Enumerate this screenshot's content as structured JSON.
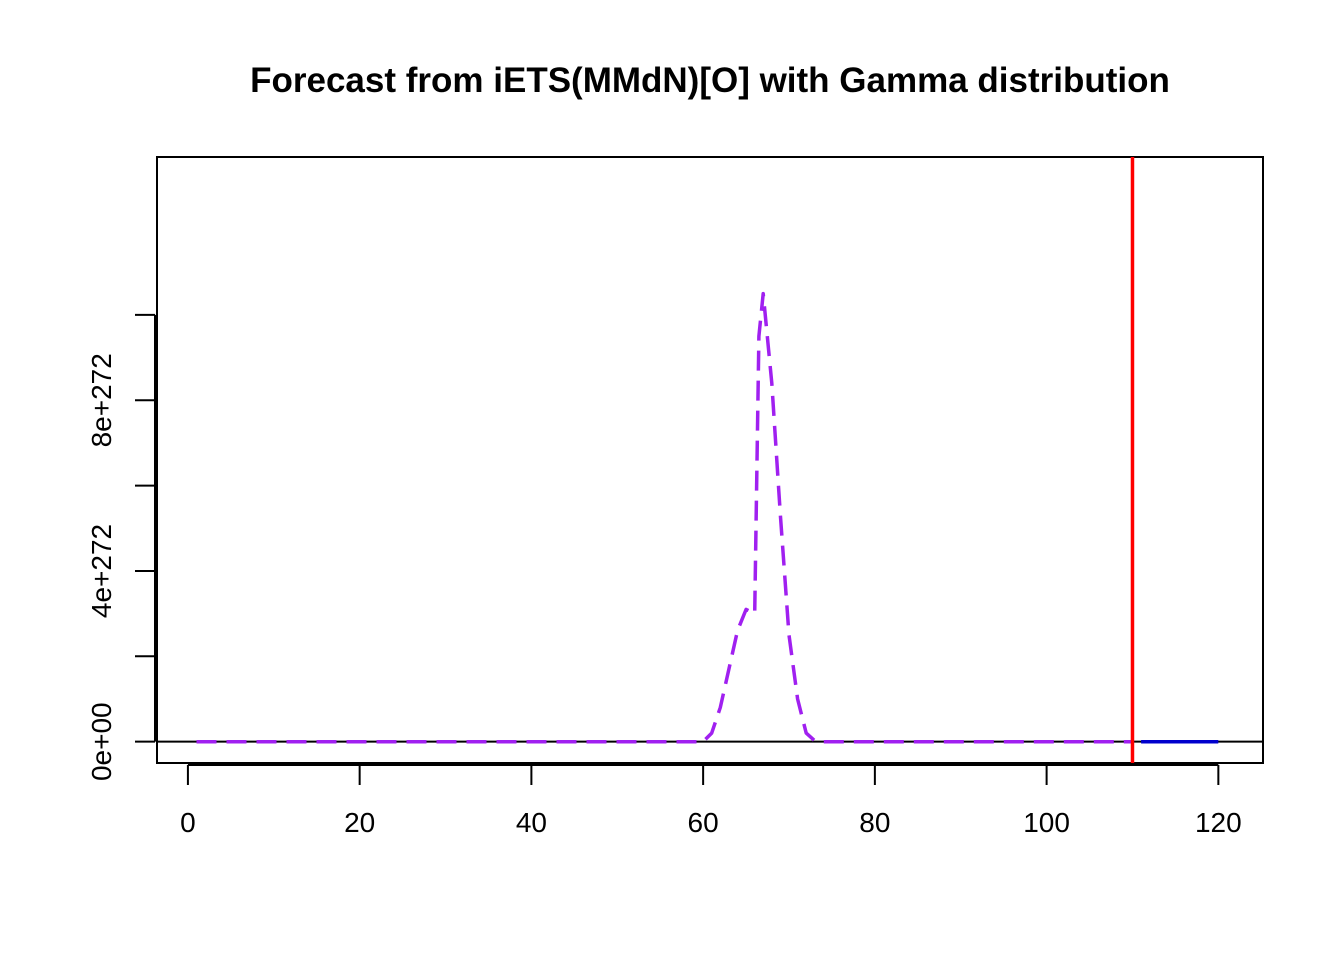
{
  "chart_data": {
    "type": "line",
    "title": "Forecast from iETS(MMdN)[O] with Gamma distribution",
    "xlabel": "",
    "ylabel": "",
    "xlim": [
      -3.6,
      125.2
    ],
    "ylim": [
      -5e+271,
      1.37e+273
    ],
    "x_ticks": [
      0,
      20,
      40,
      60,
      80,
      100,
      120
    ],
    "y_ticks": [
      0,
      2e+272,
      4e+272,
      6e+272,
      8e+272,
      1e+273
    ],
    "y_tick_labels": [
      {
        "value": 0,
        "label": "0e+00"
      },
      {
        "value": 4e+272,
        "label": "4e+272"
      },
      {
        "value": 8e+272,
        "label": "8e+272"
      }
    ],
    "grid": false,
    "legend": "none",
    "zero_line_color": "#000000",
    "holdout_line": {
      "x": 110,
      "color": "#ff0000"
    },
    "series": [
      {
        "style": "dashed",
        "color": "#a020f0",
        "points": [
          [
            1,
            0
          ],
          [
            60,
            0
          ],
          [
            61,
            2e+271
          ],
          [
            62,
            8e+271
          ],
          [
            63,
            1.7e+272
          ],
          [
            64,
            2.6e+272
          ],
          [
            65,
            3.1e+272
          ],
          [
            66,
            3e+272
          ],
          [
            66.5,
            9.5e+272
          ],
          [
            67,
            1.05e+273
          ],
          [
            68,
            8.4e+272
          ],
          [
            69,
            5.3e+272
          ],
          [
            70,
            2.5e+272
          ],
          [
            71,
            1e+272
          ],
          [
            72,
            2e+271
          ],
          [
            73,
            2e+270
          ],
          [
            74,
            0
          ],
          [
            110,
            0
          ]
        ]
      },
      {
        "style": "solid",
        "color": "#0000cd",
        "points": [
          [
            111,
            0
          ],
          [
            120,
            0
          ]
        ]
      }
    ]
  }
}
